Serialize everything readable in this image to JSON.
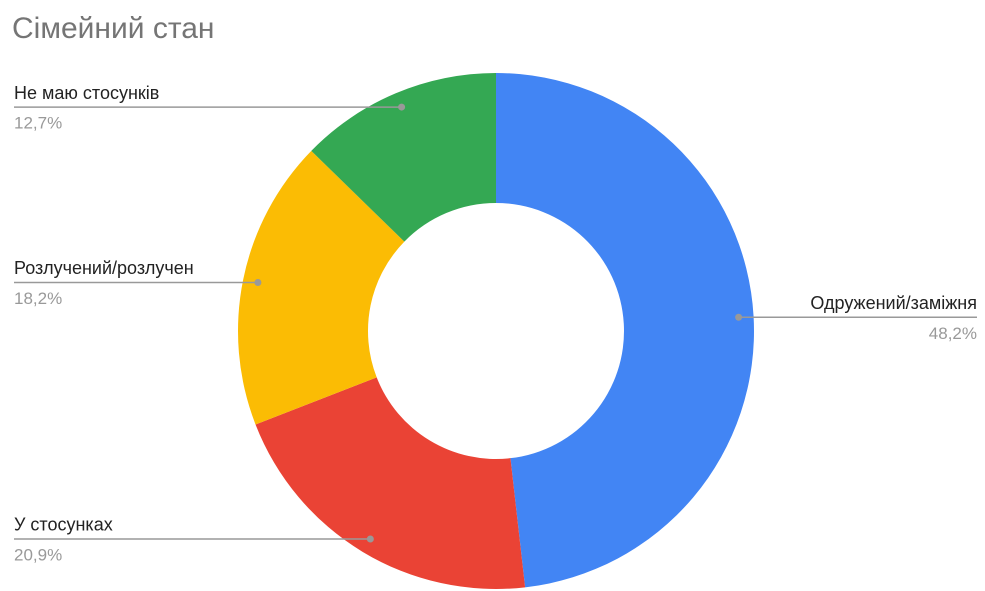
{
  "chart_data": {
    "type": "donut",
    "title": "Сімейний стан",
    "categories": [
      "Одружений/заміжня",
      "У стосунках",
      "Розлучений/розлучен",
      "Не маю стосунків"
    ],
    "values": [
      48.2,
      20.9,
      18.2,
      12.7
    ],
    "value_labels": [
      "48,2%",
      "20,9%",
      "18,2%",
      "12,7%"
    ],
    "colors": [
      "#4285f4",
      "#ea4335",
      "#fbbc04",
      "#34a853"
    ]
  }
}
